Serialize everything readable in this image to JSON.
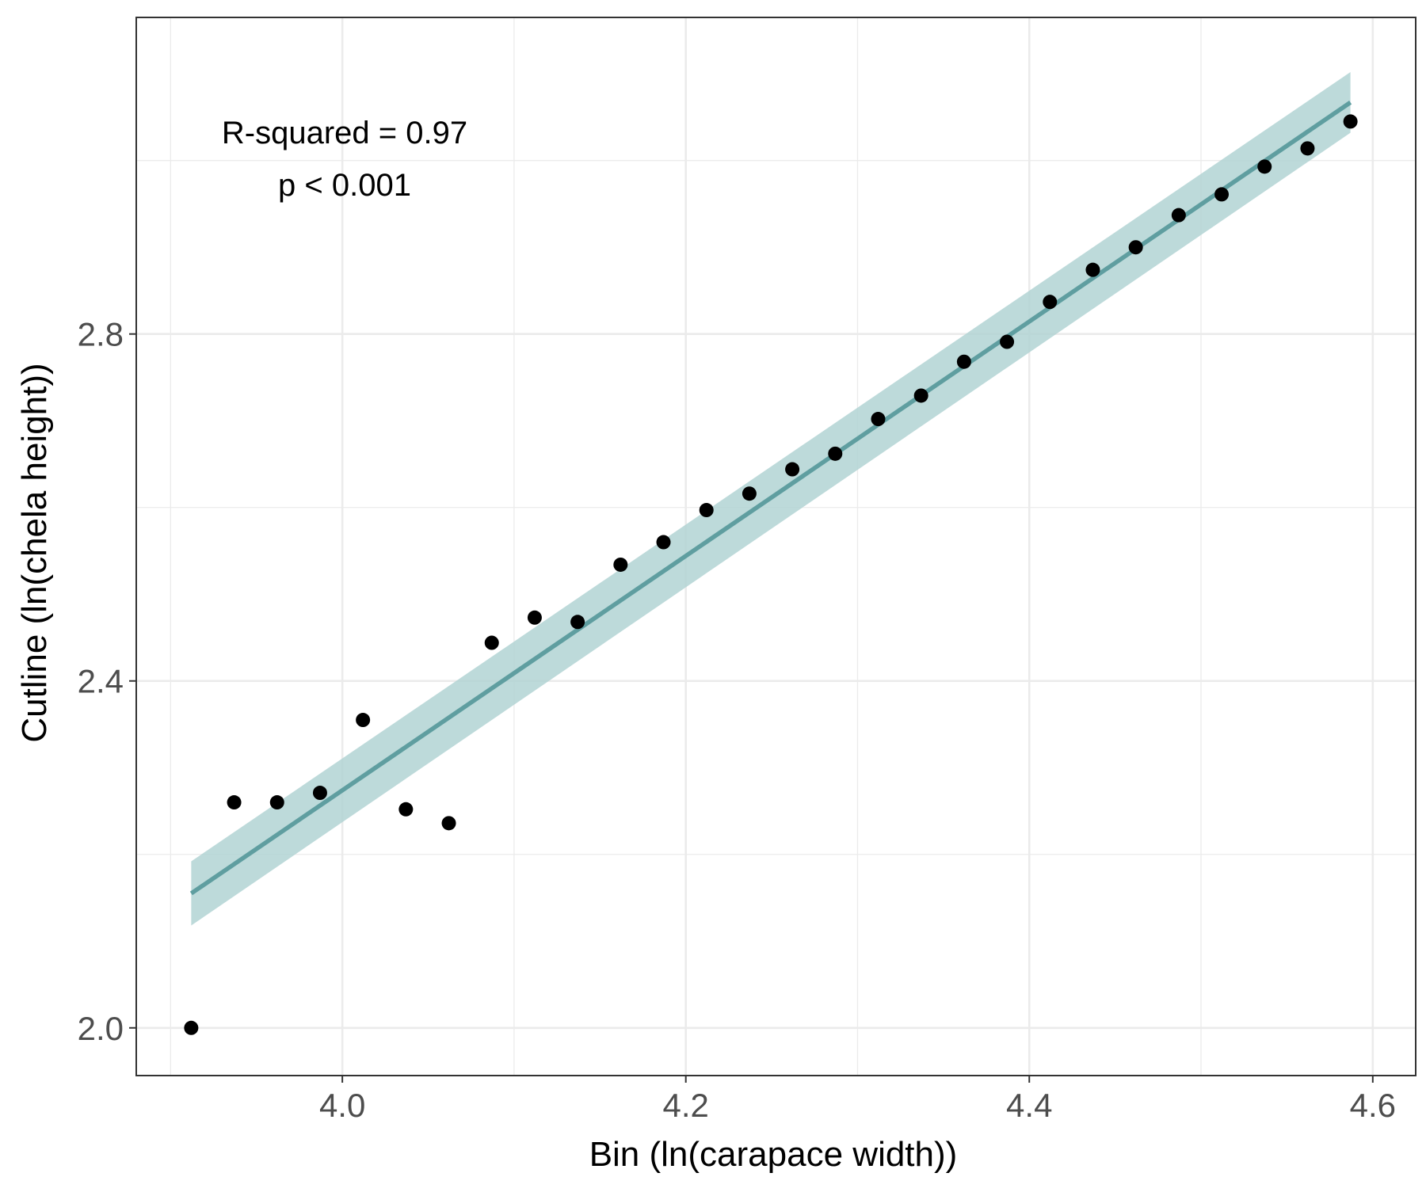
{
  "chart_data": {
    "type": "scatter",
    "xlabel": "Bin (ln(carapace width))",
    "ylabel": "Cutline (ln(chela height))",
    "annotations": [
      "R-squared = 0.97",
      "p < 0.001"
    ],
    "xlim": [
      3.88,
      4.625
    ],
    "ylim": [
      1.945,
      3.165
    ],
    "x_ticks": [
      4.0,
      4.2,
      4.4,
      4.6
    ],
    "x_tick_labels": [
      "4.0",
      "4.2",
      "4.4",
      "4.6"
    ],
    "y_ticks": [
      2.0,
      2.4,
      2.8
    ],
    "y_tick_labels": [
      "2.0",
      "2.4",
      "2.8"
    ],
    "grid": true,
    "series": [
      {
        "kind": "points",
        "color": "#000000",
        "x": [
          3.912,
          3.937,
          3.962,
          3.987,
          4.012,
          4.037,
          4.062,
          4.087,
          4.112,
          4.137,
          4.162,
          4.187,
          4.212,
          4.237,
          4.262,
          4.287,
          4.312,
          4.337,
          4.362,
          4.387,
          4.412,
          4.437,
          4.462,
          4.487,
          4.512,
          4.537,
          4.562,
          4.587
        ],
        "y": [
          2.0,
          2.26,
          2.26,
          2.271,
          2.355,
          2.252,
          2.236,
          2.444,
          2.473,
          2.468,
          2.534,
          2.56,
          2.597,
          2.616,
          2.644,
          2.662,
          2.702,
          2.729,
          2.768,
          2.791,
          2.837,
          2.874,
          2.9,
          2.937,
          2.961,
          2.993,
          3.014,
          3.045
        ]
      },
      {
        "kind": "fit",
        "color": "#5f9ea0",
        "band_color": "#b2d3d4",
        "x": [
          3.912,
          4.587
        ],
        "y": [
          2.155,
          3.067
        ],
        "ci_lower": [
          2.118,
          3.032
        ],
        "ci_upper": [
          2.192,
          3.102
        ]
      }
    ]
  }
}
